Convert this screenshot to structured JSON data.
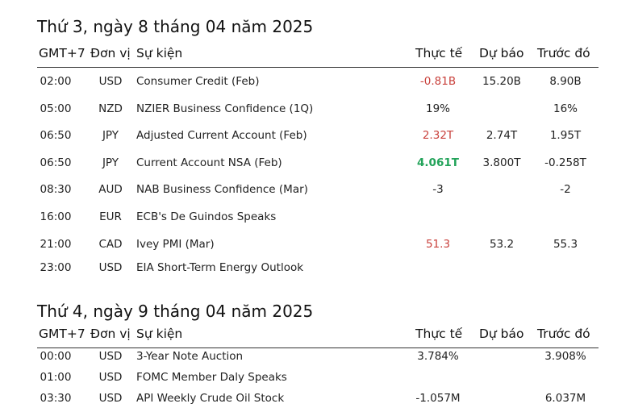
{
  "colors": {
    "negative": "#c9413c",
    "positive": "#23a35a"
  },
  "days": [
    {
      "title": "Thứ 3, ngày 8 tháng 04 năm 2025",
      "headers": {
        "time": "GMT+7",
        "currency": "Đơn vị",
        "event": "Sự kiện",
        "actual": "Thực tế",
        "forecast": "Dự báo",
        "previous": "Trước đó"
      },
      "rows": [
        {
          "time": "02:00",
          "currency": "USD",
          "event": "Consumer Credit (Feb)",
          "actual": "-0.81B",
          "actual_status": "negative",
          "forecast": "15.20B",
          "previous": "8.90B"
        },
        {
          "time": "05:00",
          "currency": "NZD",
          "event": "NZIER Business Confidence (1Q)",
          "actual": "19%",
          "actual_status": "neutral",
          "forecast": "",
          "previous": "16%"
        },
        {
          "time": "06:50",
          "currency": "JPY",
          "event": "Adjusted Current Account (Feb)",
          "actual": "2.32T",
          "actual_status": "negative",
          "forecast": "2.74T",
          "previous": "1.95T"
        },
        {
          "time": "06:50",
          "currency": "JPY",
          "event": "Current Account NSA (Feb)",
          "actual": "4.061T",
          "actual_status": "positive",
          "forecast": "3.800T",
          "previous": "-0.258T"
        },
        {
          "time": "08:30",
          "currency": "AUD",
          "event": "NAB Business Confidence (Mar)",
          "actual": "-3",
          "actual_status": "neutral",
          "forecast": "",
          "previous": "-2"
        },
        {
          "time": "16:00",
          "currency": "EUR",
          "event": "ECB's De Guindos Speaks",
          "actual": "",
          "actual_status": "neutral",
          "forecast": "",
          "previous": ""
        },
        {
          "time": "21:00",
          "currency": "CAD",
          "event": "Ivey PMI (Mar)",
          "actual": "51.3",
          "actual_status": "negative",
          "forecast": "53.2",
          "previous": "55.3"
        },
        {
          "time": "23:00",
          "currency": "USD",
          "event": "EIA Short-Term Energy Outlook",
          "actual": "",
          "actual_status": "neutral",
          "forecast": "",
          "previous": ""
        }
      ]
    },
    {
      "title": "Thứ 4, ngày 9 tháng 04 năm 2025",
      "headers": {
        "time": "GMT+7",
        "currency": "Đơn vị",
        "event": "Sự kiện",
        "actual": "Thực tế",
        "forecast": "Dự báo",
        "previous": "Trước đó"
      },
      "rows": [
        {
          "time": "00:00",
          "currency": "USD",
          "event": "3-Year Note Auction",
          "actual": "3.784%",
          "actual_status": "neutral",
          "forecast": "",
          "previous": "3.908%"
        },
        {
          "time": "01:00",
          "currency": "USD",
          "event": "FOMC Member Daly Speaks",
          "actual": "",
          "actual_status": "neutral",
          "forecast": "",
          "previous": ""
        },
        {
          "time": "03:30",
          "currency": "USD",
          "event": "API Weekly Crude Oil Stock",
          "actual": "-1.057M",
          "actual_status": "neutral",
          "forecast": "",
          "previous": "6.037M"
        }
      ]
    }
  ]
}
